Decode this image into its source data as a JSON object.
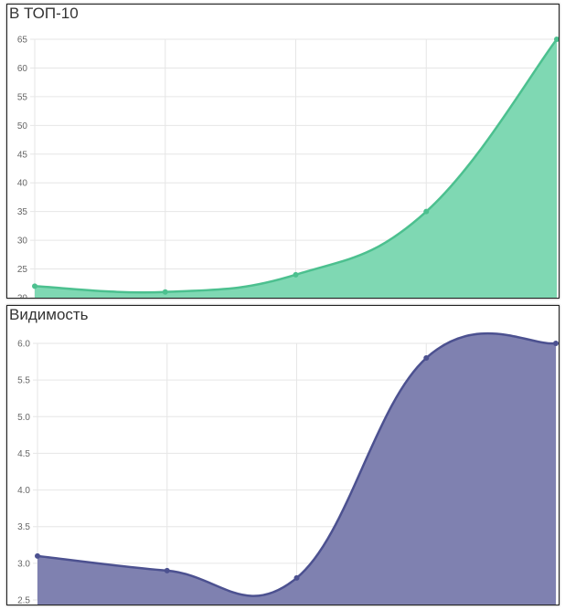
{
  "chart_data": [
    {
      "type": "area",
      "title": "В ТОП-10",
      "categories": [
        "",
        "",
        "",
        "",
        ""
      ],
      "values": [
        22,
        21,
        24,
        35,
        65
      ],
      "ylim": [
        20,
        65
      ],
      "yticks": [
        "20",
        "25",
        "30",
        "35",
        "40",
        "45",
        "50",
        "55",
        "60",
        "65"
      ],
      "grid": true,
      "line_color": "#4cc08f",
      "fill_color": "#7fd8b3"
    },
    {
      "type": "area",
      "title": "Видимость",
      "categories": [
        "",
        "",
        "",
        "",
        ""
      ],
      "values": [
        3.1,
        2.9,
        2.8,
        5.8,
        6.0
      ],
      "ylim": [
        2.5,
        6.0
      ],
      "yticks": [
        "2.5",
        "3.0",
        "3.5",
        "4.0",
        "4.5",
        "5.0",
        "5.5",
        "6.0"
      ],
      "grid": true,
      "line_color": "#4c5190",
      "fill_color": "#7f81b0"
    }
  ]
}
